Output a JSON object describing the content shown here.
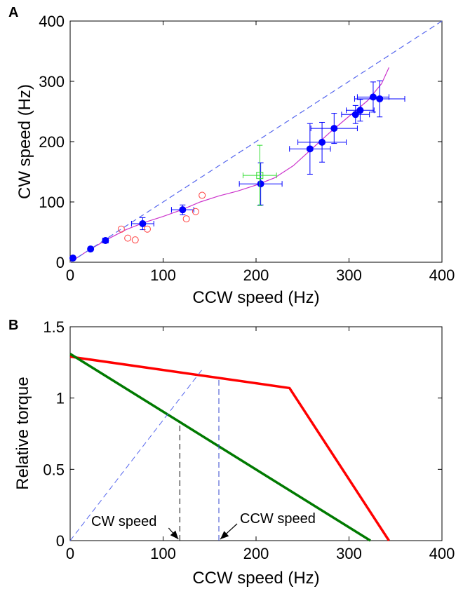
{
  "chart_data": [
    {
      "panel_label": "A",
      "type": "scatter",
      "xlabel": "CCW speed (Hz)",
      "ylabel": "CW speed (Hz)",
      "xlim": [
        0,
        400
      ],
      "ylim": [
        0,
        400
      ],
      "xticks": [
        "0",
        "100",
        "200",
        "300",
        "400"
      ],
      "yticks": [
        "0",
        "100",
        "200",
        "300",
        "400"
      ],
      "grid": false,
      "colors": {
        "blue": "#0000ff",
        "red": "#ff4040",
        "green": "#33dd33",
        "magenta": "#cc33cc",
        "dashed": "#5566ee"
      },
      "series": [
        {
          "marker": "filled-circle",
          "color": "#0000ff",
          "points": [
            {
              "x": 3,
              "y": 7,
              "xerr": 2,
              "yerr": 3
            },
            {
              "x": 22,
              "y": 22,
              "xerr": 2,
              "yerr": 3
            },
            {
              "x": 38,
              "y": 36,
              "xerr": 3,
              "yerr": 4
            },
            {
              "x": 78,
              "y": 64,
              "xerr": 12,
              "yerr": 10
            },
            {
              "x": 121,
              "y": 87,
              "xerr": 12,
              "yerr": 8
            },
            {
              "x": 205,
              "y": 130,
              "xerr": 23,
              "yerr": 35
            },
            {
              "x": 258,
              "y": 188,
              "xerr": 22,
              "yerr": 42
            },
            {
              "x": 271,
              "y": 199,
              "xerr": 26,
              "yerr": 33
            },
            {
              "x": 284,
              "y": 222,
              "xerr": 25,
              "yerr": 25
            },
            {
              "x": 307,
              "y": 245,
              "xerr": 15,
              "yerr": 15
            },
            {
              "x": 312,
              "y": 252,
              "xerr": 15,
              "yerr": 18
            },
            {
              "x": 326,
              "y": 274,
              "xerr": 17,
              "yerr": 25
            },
            {
              "x": 333,
              "y": 271,
              "xerr": 27,
              "yerr": 30
            }
          ]
        },
        {
          "marker": "open-circle",
          "color": "#ff4040",
          "points": [
            {
              "x": 55,
              "y": 55
            },
            {
              "x": 62,
              "y": 40
            },
            {
              "x": 70,
              "y": 37
            },
            {
              "x": 83,
              "y": 55
            },
            {
              "x": 125,
              "y": 72
            },
            {
              "x": 135,
              "y": 84
            },
            {
              "x": 142,
              "y": 111
            }
          ]
        },
        {
          "marker": "open-square",
          "color": "#33dd33",
          "points": [
            {
              "x": 204,
              "y": 144,
              "xerr": 18,
              "yerr": 50
            }
          ]
        },
        {
          "type": "line",
          "color": "#cc33cc",
          "x": [
            0,
            20,
            40,
            60,
            80,
            100,
            120,
            140,
            160,
            180,
            200,
            220,
            240,
            260,
            280,
            300,
            320,
            335,
            343
          ],
          "y": [
            0,
            20,
            38,
            54,
            66,
            76,
            87,
            100,
            110,
            118,
            128,
            140,
            160,
            188,
            216,
            242,
            268,
            296,
            323
          ]
        },
        {
          "type": "line",
          "style": "dashed",
          "color": "#5566ee",
          "x": [
            0,
            400
          ],
          "y": [
            0,
            400
          ]
        }
      ]
    },
    {
      "panel_label": "B",
      "type": "line",
      "xlabel": "CCW speed (Hz)",
      "ylabel": "Relative torque",
      "xlim": [
        0,
        400
      ],
      "ylim": [
        0,
        1.5
      ],
      "xticks": [
        "0",
        "100",
        "200",
        "300",
        "400"
      ],
      "yticks": [
        "0",
        "0.5",
        "1",
        "1.5"
      ],
      "grid": false,
      "series": [
        {
          "color": "#ff0000",
          "x": [
            0,
            236,
            343
          ],
          "y": [
            1.29,
            1.07,
            0
          ]
        },
        {
          "color": "#007a00",
          "x": [
            0,
            323
          ],
          "y": [
            1.31,
            0
          ]
        },
        {
          "style": "dashed",
          "color": "#5566ee",
          "x": [
            0,
            142
          ],
          "y": [
            0,
            1.2
          ]
        },
        {
          "style": "dashed",
          "color": "#000000",
          "x": [
            118,
            118
          ],
          "y": [
            0,
            0.84
          ]
        },
        {
          "style": "dashed",
          "color": "#3344cc",
          "x": [
            160,
            160
          ],
          "y": [
            0,
            1.14
          ]
        }
      ],
      "annotations": [
        {
          "text": "CW speed",
          "x_target": 118
        },
        {
          "text": "CCW speed",
          "x_target": 160
        }
      ]
    }
  ]
}
